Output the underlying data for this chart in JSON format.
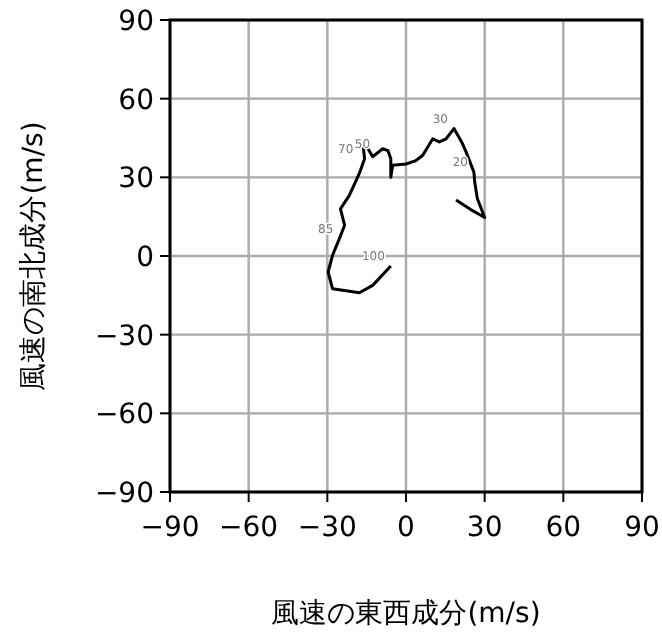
{
  "chart_data": {
    "type": "line",
    "xlabel": "風速の東西成分(m/s)",
    "ylabel": "風速の南北成分(m/s)",
    "xlim": [
      -90,
      90
    ],
    "ylim": [
      -90,
      90
    ],
    "xticks": [
      -90,
      -60,
      -30,
      0,
      30,
      60,
      90
    ],
    "yticks": [
      -90,
      -60,
      -30,
      0,
      30,
      60,
      90
    ],
    "grid": true,
    "series": [
      {
        "color": "#000000",
        "x": [
          -5.8,
          -12.7,
          -17.8,
          -28.0,
          -29.7,
          -28.0,
          -25.4,
          -23.4,
          -25.0,
          -21.6,
          -17.8,
          -15.8,
          -16.3,
          -14.5,
          -12.7,
          -11.4,
          -8.9,
          -6.9,
          -5.8,
          -5.8,
          -5.1,
          0,
          3.8,
          6.4,
          10.2,
          12.7,
          15.3,
          18.3,
          19.8,
          21.6,
          22.9,
          25.9,
          26.2,
          27.2,
          30.0,
          25.4,
          19.1
        ],
        "values": [
          -3.8,
          -11.2,
          -14.0,
          -12.5,
          -6.1,
          0.3,
          6.6,
          11.7,
          18.0,
          23.1,
          31.5,
          37.1,
          41.7,
          40.9,
          37.9,
          38.9,
          40.9,
          40.2,
          37.1,
          30.0,
          34.6,
          35.1,
          36.4,
          38.4,
          44.7,
          43.5,
          44.7,
          48.6,
          46.0,
          42.7,
          39.7,
          32.0,
          28.2,
          21.9,
          14.7,
          17.3,
          21.4
        ]
      }
    ],
    "annotations": [
      {
        "text": "100",
        "x": -5.8,
        "y": -3.8
      },
      {
        "text": "85",
        "x": -25.4,
        "y": 6.6
      },
      {
        "text": "70",
        "x": -17.8,
        "y": 37.1
      },
      {
        "text": "50",
        "x": -11.4,
        "y": 38.9
      },
      {
        "text": "30",
        "x": 18.3,
        "y": 48.6
      },
      {
        "text": "20",
        "x": 25.9,
        "y": 32.0
      }
    ]
  }
}
